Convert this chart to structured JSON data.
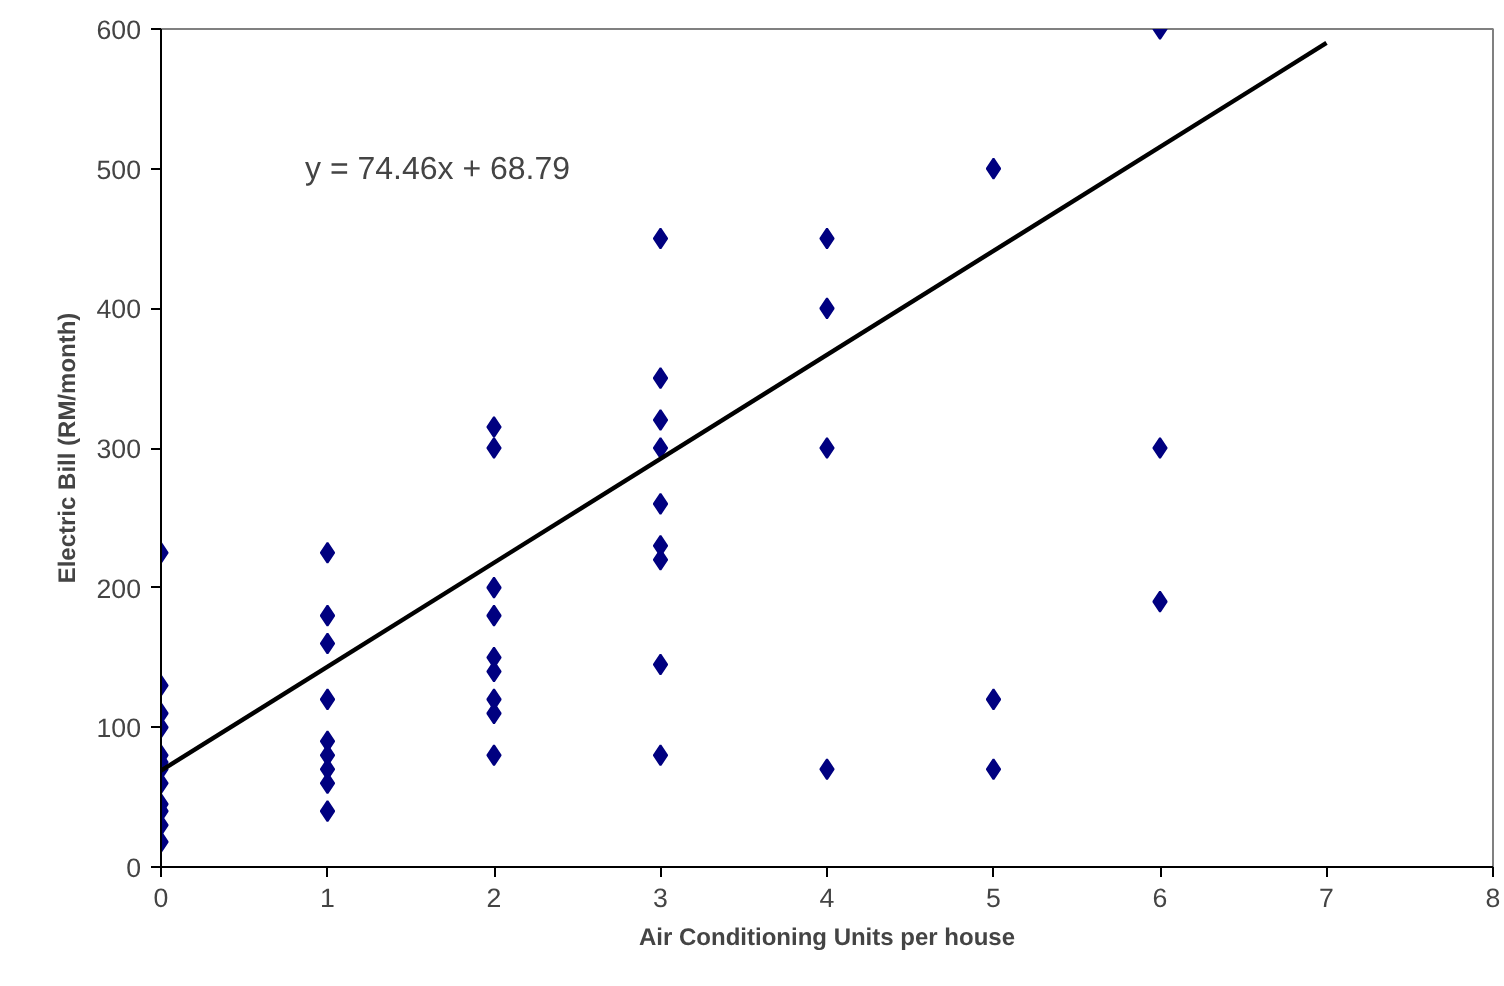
{
  "chart_data": {
    "type": "scatter",
    "xlabel": "Air Conditioning Units per house",
    "ylabel": "Electric Bill (RM/month)",
    "xlim": [
      0,
      8
    ],
    "ylim": [
      0,
      600
    ],
    "xticks": [
      0,
      1,
      2,
      3,
      4,
      5,
      6,
      7,
      8
    ],
    "yticks": [
      0,
      100,
      200,
      300,
      400,
      500,
      600
    ],
    "grid": false,
    "marker": "diamond",
    "annotations": [
      "y = 74.46x + 68.79"
    ],
    "series": [
      {
        "color": "#000080",
        "x": [
          0,
          0,
          0,
          0,
          0,
          0,
          0,
          0,
          0,
          0,
          0,
          0,
          1,
          1,
          1,
          1,
          1,
          1,
          1,
          1,
          1,
          2,
          2,
          2,
          2,
          2,
          2,
          2,
          2,
          2,
          3,
          3,
          3,
          3,
          3,
          3,
          3,
          3,
          3,
          4,
          4,
          4,
          4,
          5,
          5,
          5,
          6,
          6,
          6
        ],
        "values": [
          225,
          130,
          110,
          100,
          80,
          75,
          70,
          60,
          45,
          40,
          30,
          18,
          225,
          180,
          160,
          120,
          90,
          80,
          70,
          60,
          40,
          315,
          300,
          200,
          180,
          150,
          140,
          120,
          110,
          80,
          450,
          350,
          320,
          300,
          260,
          230,
          220,
          145,
          80,
          450,
          400,
          300,
          70,
          500,
          120,
          70,
          600,
          300,
          190
        ]
      },
      {
        "type": "line",
        "color": "#000000",
        "x": [
          0,
          7
        ],
        "values": [
          69,
          590
        ],
        "marker": "none",
        "line_style": "solid"
      }
    ]
  }
}
